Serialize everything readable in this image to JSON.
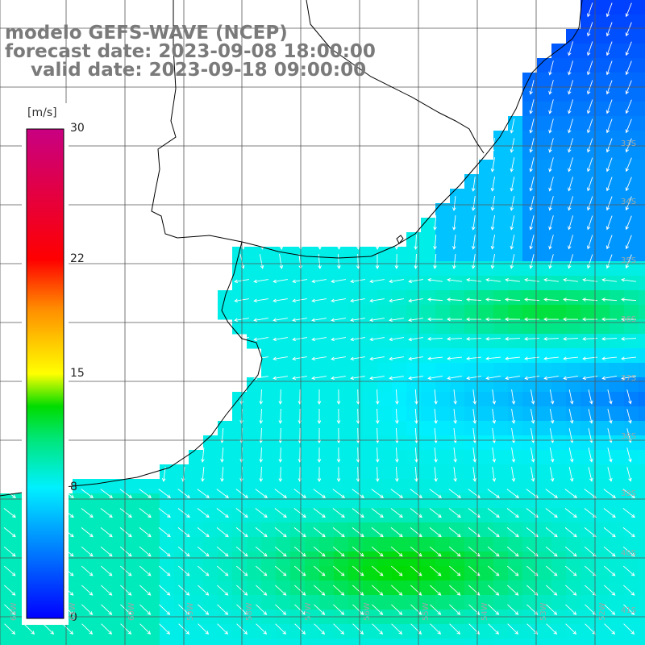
{
  "header": {
    "line1": "modelo GEFS-WAVE (NCEP)",
    "line2": "forecast date: 2023-09-08 18:00:00",
    "line3": "    valid date: 2023-09-18 09:00:00"
  },
  "colorbar": {
    "units": "[m/s]",
    "ticks": [
      {
        "value": 30,
        "label": "30"
      },
      {
        "value": 22,
        "label": "22"
      },
      {
        "value": 15,
        "label": "15"
      },
      {
        "value": 8,
        "label": "8"
      },
      {
        "value": 0,
        "label": "0"
      }
    ],
    "min": 0,
    "max": 30
  },
  "lat_labels": [
    "33S",
    "34S",
    "35S",
    "36S",
    "37S",
    "38S",
    "39S",
    "40S",
    "41S"
  ],
  "lon_labels": [
    "62W",
    "61W",
    "60W",
    "59W",
    "58W",
    "57W",
    "56W",
    "55W",
    "54W",
    "53W",
    "52W"
  ],
  "field": {
    "variable": "wind speed and direction",
    "colors": {
      "land": "#ffffff",
      "coast": "#000000",
      "grid": "#555555",
      "arrow": "#ffffff"
    }
  }
}
